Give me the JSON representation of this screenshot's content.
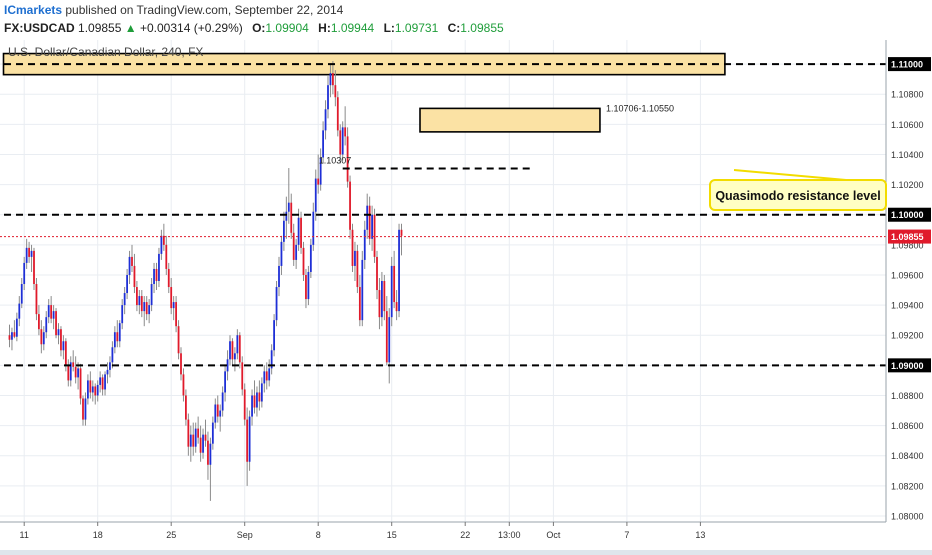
{
  "header": {
    "publisher": "ICmarkets",
    "published_text": "published on TradingView.com, September 22, 2014",
    "symbol": "FX:USDCAD",
    "last": "1.09855",
    "change_arrow": "▲",
    "change": "+0.00314 (+0.29%)",
    "open_label": "O:",
    "open": "1.09904",
    "high_label": "H:",
    "high": "1.09944",
    "low_label": "L:",
    "low": "1.09731",
    "close_label": "C:",
    "close": "1.09855"
  },
  "colors": {
    "background": "#ffffff",
    "bull": "#1e2fd6",
    "bear": "#e01a2b",
    "zone_fill": "#fbe2a4",
    "callout_fill": "#ffffc4",
    "callout_border": "#f2dc00",
    "price_badge": "#e01a2b",
    "grid": "#e9edf2"
  },
  "chart_data": {
    "type": "candlestick",
    "title": "U.S. Dollar/Canadian Dollar, 240, FX",
    "ylim": [
      1.0796,
      1.1116
    ],
    "y_ticks": [
      "1.11000",
      "1.10800",
      "1.10600",
      "1.10400",
      "1.10200",
      "1.10000",
      "1.09800",
      "1.09600",
      "1.09400",
      "1.09200",
      "1.09000",
      "1.08800",
      "1.08600",
      "1.08400",
      "1.08200",
      "1.08000"
    ],
    "y_tick_values": [
      1.11,
      1.108,
      1.106,
      1.104,
      1.102,
      1.1,
      1.098,
      1.096,
      1.094,
      1.092,
      1.09,
      1.088,
      1.086,
      1.084,
      1.082,
      1.08
    ],
    "x_ticks": [
      "11",
      "18",
      "25",
      "Sep",
      "8",
      "15",
      "22",
      "13:00",
      "Oct",
      "7",
      "13"
    ],
    "x_tick_index": [
      6,
      36,
      66,
      96,
      126,
      156,
      186,
      204,
      222,
      252,
      282
    ],
    "last_price": "1.09855",
    "levels": [
      {
        "label": "1.11000",
        "value": 1.11,
        "style": "dashed",
        "badge": true
      },
      {
        "label": "1.10000",
        "value": 1.1,
        "style": "dashed",
        "badge": true
      },
      {
        "label": "1.09000",
        "value": 1.09,
        "style": "dashed",
        "badge": true
      },
      {
        "label": "1.10307",
        "value": 1.10307,
        "style": "dashed",
        "from_index": 136,
        "to_index": 210
      }
    ],
    "zones": [
      {
        "label": "",
        "top": 1.1107,
        "bottom": 1.1093,
        "from_index": 0,
        "to_index": 292
      },
      {
        "label": "1.10706-1.10550",
        "top": 1.10706,
        "bottom": 1.1055,
        "from_index": 170,
        "to_index": 241
      }
    ],
    "annotation": "Quasimodo resistance level",
    "candles": [
      {
        "o": 1.092,
        "h": 1.0927,
        "l": 1.0912,
        "c": 1.0917
      },
      {
        "o": 1.0917,
        "h": 1.0925,
        "l": 1.091,
        "c": 1.0922
      },
      {
        "o": 1.0922,
        "h": 1.093,
        "l": 1.0918,
        "c": 1.0919
      },
      {
        "o": 1.0919,
        "h": 1.0935,
        "l": 1.0916,
        "c": 1.0931
      },
      {
        "o": 1.0931,
        "h": 1.0946,
        "l": 1.0926,
        "c": 1.0941
      },
      {
        "o": 1.0941,
        "h": 1.0958,
        "l": 1.0938,
        "c": 1.0954
      },
      {
        "o": 1.0954,
        "h": 1.0972,
        "l": 1.095,
        "c": 1.0968
      },
      {
        "o": 1.0968,
        "h": 1.0984,
        "l": 1.0964,
        "c": 1.0978
      },
      {
        "o": 1.0978,
        "h": 1.0982,
        "l": 1.0968,
        "c": 1.0972
      },
      {
        "o": 1.0972,
        "h": 1.098,
        "l": 1.0962,
        "c": 1.0976
      },
      {
        "o": 1.0976,
        "h": 1.0978,
        "l": 1.095,
        "c": 1.0954
      },
      {
        "o": 1.0954,
        "h": 1.0958,
        "l": 1.093,
        "c": 1.0934
      },
      {
        "o": 1.0934,
        "h": 1.094,
        "l": 1.092,
        "c": 1.0924
      },
      {
        "o": 1.0924,
        "h": 1.093,
        "l": 1.0908,
        "c": 1.0914
      },
      {
        "o": 1.0914,
        "h": 1.0926,
        "l": 1.091,
        "c": 1.0922
      },
      {
        "o": 1.0922,
        "h": 1.0936,
        "l": 1.0918,
        "c": 1.0932
      },
      {
        "o": 1.0932,
        "h": 1.0944,
        "l": 1.0928,
        "c": 1.094
      },
      {
        "o": 1.094,
        "h": 1.0946,
        "l": 1.0928,
        "c": 1.0931
      },
      {
        "o": 1.0931,
        "h": 1.094,
        "l": 1.0924,
        "c": 1.0936
      },
      {
        "o": 1.0936,
        "h": 1.0938,
        "l": 1.0918,
        "c": 1.092
      },
      {
        "o": 1.092,
        "h": 1.0928,
        "l": 1.0914,
        "c": 1.0924
      },
      {
        "o": 1.0924,
        "h": 1.0926,
        "l": 1.0906,
        "c": 1.091
      },
      {
        "o": 1.091,
        "h": 1.092,
        "l": 1.0904,
        "c": 1.0916
      },
      {
        "o": 1.0916,
        "h": 1.0918,
        "l": 1.0896,
        "c": 1.09
      },
      {
        "o": 1.09,
        "h": 1.0904,
        "l": 1.0886,
        "c": 1.089
      },
      {
        "o": 1.089,
        "h": 1.0906,
        "l": 1.0886,
        "c": 1.0902
      },
      {
        "o": 1.0902,
        "h": 1.091,
        "l": 1.0896,
        "c": 1.0899
      },
      {
        "o": 1.0899,
        "h": 1.0906,
        "l": 1.0888,
        "c": 1.0892
      },
      {
        "o": 1.0892,
        "h": 1.0902,
        "l": 1.0884,
        "c": 1.0898
      },
      {
        "o": 1.0898,
        "h": 1.0901,
        "l": 1.0874,
        "c": 1.0878
      },
      {
        "o": 1.0878,
        "h": 1.088,
        "l": 1.086,
        "c": 1.0864
      },
      {
        "o": 1.0864,
        "h": 1.0882,
        "l": 1.086,
        "c": 1.0878
      },
      {
        "o": 1.0878,
        "h": 1.0894,
        "l": 1.0874,
        "c": 1.089
      },
      {
        "o": 1.089,
        "h": 1.0896,
        "l": 1.0878,
        "c": 1.0882
      },
      {
        "o": 1.0882,
        "h": 1.089,
        "l": 1.0876,
        "c": 1.0886
      },
      {
        "o": 1.0886,
        "h": 1.0888,
        "l": 1.0874,
        "c": 1.088
      },
      {
        "o": 1.088,
        "h": 1.089,
        "l": 1.0876,
        "c": 1.0887
      },
      {
        "o": 1.0887,
        "h": 1.0896,
        "l": 1.0882,
        "c": 1.0892
      },
      {
        "o": 1.0892,
        "h": 1.0894,
        "l": 1.088,
        "c": 1.0884
      },
      {
        "o": 1.0884,
        "h": 1.0896,
        "l": 1.088,
        "c": 1.0894
      },
      {
        "o": 1.0894,
        "h": 1.0902,
        "l": 1.0888,
        "c": 1.0897
      },
      {
        "o": 1.0897,
        "h": 1.0906,
        "l": 1.0892,
        "c": 1.0902
      },
      {
        "o": 1.0902,
        "h": 1.0916,
        "l": 1.0898,
        "c": 1.0912
      },
      {
        "o": 1.0912,
        "h": 1.0926,
        "l": 1.0908,
        "c": 1.0922
      },
      {
        "o": 1.0922,
        "h": 1.093,
        "l": 1.0912,
        "c": 1.0916
      },
      {
        "o": 1.0916,
        "h": 1.093,
        "l": 1.0912,
        "c": 1.0928
      },
      {
        "o": 1.0928,
        "h": 1.0944,
        "l": 1.0924,
        "c": 1.094
      },
      {
        "o": 1.094,
        "h": 1.0952,
        "l": 1.0934,
        "c": 1.0948
      },
      {
        "o": 1.0948,
        "h": 1.0964,
        "l": 1.0944,
        "c": 1.096
      },
      {
        "o": 1.096,
        "h": 1.0976,
        "l": 1.0954,
        "c": 1.0972
      },
      {
        "o": 1.0972,
        "h": 1.098,
        "l": 1.0962,
        "c": 1.0966
      },
      {
        "o": 1.0966,
        "h": 1.0974,
        "l": 1.0948,
        "c": 1.0952
      },
      {
        "o": 1.0952,
        "h": 1.0956,
        "l": 1.0936,
        "c": 1.094
      },
      {
        "o": 1.094,
        "h": 1.095,
        "l": 1.0934,
        "c": 1.0946
      },
      {
        "o": 1.0946,
        "h": 1.095,
        "l": 1.0932,
        "c": 1.0936
      },
      {
        "o": 1.0936,
        "h": 1.0946,
        "l": 1.0926,
        "c": 1.0942
      },
      {
        "o": 1.0942,
        "h": 1.0946,
        "l": 1.093,
        "c": 1.0934
      },
      {
        "o": 1.0934,
        "h": 1.0944,
        "l": 1.0928,
        "c": 1.094
      },
      {
        "o": 1.094,
        "h": 1.0958,
        "l": 1.0936,
        "c": 1.0954
      },
      {
        "o": 1.0954,
        "h": 1.0968,
        "l": 1.0948,
        "c": 1.0964
      },
      {
        "o": 1.0964,
        "h": 1.0968,
        "l": 1.095,
        "c": 1.0956
      },
      {
        "o": 1.0956,
        "h": 1.0978,
        "l": 1.0952,
        "c": 1.0974
      },
      {
        "o": 1.0974,
        "h": 1.099,
        "l": 1.097,
        "c": 1.0986
      },
      {
        "o": 1.0986,
        "h": 1.0994,
        "l": 1.0976,
        "c": 1.098
      },
      {
        "o": 1.098,
        "h": 1.0986,
        "l": 1.096,
        "c": 1.0964
      },
      {
        "o": 1.0964,
        "h": 1.0968,
        "l": 1.0948,
        "c": 1.0952
      },
      {
        "o": 1.0952,
        "h": 1.0958,
        "l": 1.0934,
        "c": 1.0938
      },
      {
        "o": 1.0938,
        "h": 1.0946,
        "l": 1.093,
        "c": 1.0942
      },
      {
        "o": 1.0942,
        "h": 1.0946,
        "l": 1.0922,
        "c": 1.0926
      },
      {
        "o": 1.0926,
        "h": 1.093,
        "l": 1.0904,
        "c": 1.0908
      },
      {
        "o": 1.0908,
        "h": 1.0912,
        "l": 1.089,
        "c": 1.0894
      },
      {
        "o": 1.0894,
        "h": 1.0898,
        "l": 1.0876,
        "c": 1.088
      },
      {
        "o": 1.088,
        "h": 1.0884,
        "l": 1.086,
        "c": 1.0864
      },
      {
        "o": 1.0864,
        "h": 1.0868,
        "l": 1.084,
        "c": 1.0846
      },
      {
        "o": 1.0846,
        "h": 1.086,
        "l": 1.0836,
        "c": 1.0854
      },
      {
        "o": 1.0854,
        "h": 1.0862,
        "l": 1.084,
        "c": 1.0846
      },
      {
        "o": 1.0846,
        "h": 1.0862,
        "l": 1.0842,
        "c": 1.0858
      },
      {
        "o": 1.0858,
        "h": 1.0866,
        "l": 1.0848,
        "c": 1.0852
      },
      {
        "o": 1.0852,
        "h": 1.086,
        "l": 1.0836,
        "c": 1.0842
      },
      {
        "o": 1.0842,
        "h": 1.0858,
        "l": 1.0838,
        "c": 1.0854
      },
      {
        "o": 1.0854,
        "h": 1.0864,
        "l": 1.0846,
        "c": 1.085
      },
      {
        "o": 1.085,
        "h": 1.0856,
        "l": 1.0824,
        "c": 1.0834
      },
      {
        "o": 1.0834,
        "h": 1.0852,
        "l": 1.081,
        "c": 1.0848
      },
      {
        "o": 1.0848,
        "h": 1.0866,
        "l": 1.0844,
        "c": 1.0862
      },
      {
        "o": 1.0862,
        "h": 1.0878,
        "l": 1.0858,
        "c": 1.0874
      },
      {
        "o": 1.0874,
        "h": 1.088,
        "l": 1.0862,
        "c": 1.0866
      },
      {
        "o": 1.0866,
        "h": 1.0874,
        "l": 1.0856,
        "c": 1.087
      },
      {
        "o": 1.087,
        "h": 1.0886,
        "l": 1.0866,
        "c": 1.0882
      },
      {
        "o": 1.0882,
        "h": 1.09,
        "l": 1.0876,
        "c": 1.0896
      },
      {
        "o": 1.0896,
        "h": 1.091,
        "l": 1.089,
        "c": 1.0904
      },
      {
        "o": 1.0904,
        "h": 1.092,
        "l": 1.09,
        "c": 1.0916
      },
      {
        "o": 1.0916,
        "h": 1.0918,
        "l": 1.09,
        "c": 1.0904
      },
      {
        "o": 1.0904,
        "h": 1.0912,
        "l": 1.0896,
        "c": 1.0908
      },
      {
        "o": 1.0908,
        "h": 1.0924,
        "l": 1.0904,
        "c": 1.092
      },
      {
        "o": 1.092,
        "h": 1.0922,
        "l": 1.0898,
        "c": 1.0902
      },
      {
        "o": 1.0902,
        "h": 1.0906,
        "l": 1.088,
        "c": 1.0884
      },
      {
        "o": 1.0884,
        "h": 1.0888,
        "l": 1.086,
        "c": 1.0864
      },
      {
        "o": 1.0864,
        "h": 1.0872,
        "l": 1.082,
        "c": 1.0836
      },
      {
        "o": 1.0836,
        "h": 1.087,
        "l": 1.083,
        "c": 1.0866
      },
      {
        "o": 1.0866,
        "h": 1.0884,
        "l": 1.086,
        "c": 1.088
      },
      {
        "o": 1.088,
        "h": 1.089,
        "l": 1.0868,
        "c": 1.0872
      },
      {
        "o": 1.0872,
        "h": 1.0886,
        "l": 1.0866,
        "c": 1.0882
      },
      {
        "o": 1.0882,
        "h": 1.089,
        "l": 1.087,
        "c": 1.0876
      },
      {
        "o": 1.0876,
        "h": 1.0892,
        "l": 1.0872,
        "c": 1.0888
      },
      {
        "o": 1.0888,
        "h": 1.09,
        "l": 1.0882,
        "c": 1.0896
      },
      {
        "o": 1.0896,
        "h": 1.0902,
        "l": 1.0884,
        "c": 1.089
      },
      {
        "o": 1.089,
        "h": 1.0904,
        "l": 1.0886,
        "c": 1.0898
      },
      {
        "o": 1.0898,
        "h": 1.0914,
        "l": 1.0894,
        "c": 1.091
      },
      {
        "o": 1.091,
        "h": 1.0934,
        "l": 1.0906,
        "c": 1.093
      },
      {
        "o": 1.093,
        "h": 1.0956,
        "l": 1.0926,
        "c": 1.0952
      },
      {
        "o": 1.0952,
        "h": 1.0972,
        "l": 1.0946,
        "c": 1.0966
      },
      {
        "o": 1.0966,
        "h": 1.0986,
        "l": 1.096,
        "c": 1.0982
      },
      {
        "o": 1.0982,
        "h": 1.1002,
        "l": 1.0976,
        "c": 1.0996
      },
      {
        "o": 1.0996,
        "h": 1.1012,
        "l": 1.0984,
        "c": 1.1002
      },
      {
        "o": 1.1002,
        "h": 1.1031,
        "l": 1.0994,
        "c": 1.1008
      },
      {
        "o": 1.1008,
        "h": 1.1014,
        "l": 1.0984,
        "c": 1.0988
      },
      {
        "o": 1.0988,
        "h": 1.0994,
        "l": 1.0966,
        "c": 1.097
      },
      {
        "o": 1.097,
        "h": 1.0984,
        "l": 1.0964,
        "c": 1.098
      },
      {
        "o": 1.098,
        "h": 1.1004,
        "l": 1.0976,
        "c": 1.0998
      },
      {
        "o": 1.0998,
        "h": 1.1002,
        "l": 1.0974,
        "c": 1.0978
      },
      {
        "o": 1.0978,
        "h": 1.0982,
        "l": 1.0956,
        "c": 1.096
      },
      {
        "o": 1.096,
        "h": 1.0964,
        "l": 1.0938,
        "c": 1.0944
      },
      {
        "o": 1.0944,
        "h": 1.0966,
        "l": 1.094,
        "c": 1.0962
      },
      {
        "o": 1.0962,
        "h": 1.0984,
        "l": 1.0958,
        "c": 1.098
      },
      {
        "o": 1.098,
        "h": 1.1008,
        "l": 1.0976,
        "c": 1.1002
      },
      {
        "o": 1.1002,
        "h": 1.103,
        "l": 1.0996,
        "c": 1.1024
      },
      {
        "o": 1.1024,
        "h": 1.104,
        "l": 1.1014,
        "c": 1.102
      },
      {
        "o": 1.102,
        "h": 1.1044,
        "l": 1.1016,
        "c": 1.1038
      },
      {
        "o": 1.1038,
        "h": 1.1062,
        "l": 1.1034,
        "c": 1.1056
      },
      {
        "o": 1.1056,
        "h": 1.1076,
        "l": 1.105,
        "c": 1.107
      },
      {
        "o": 1.107,
        "h": 1.1092,
        "l": 1.1064,
        "c": 1.1086
      },
      {
        "o": 1.1086,
        "h": 1.11,
        "l": 1.1078,
        "c": 1.1094
      },
      {
        "o": 1.1094,
        "h": 1.1102,
        "l": 1.108,
        "c": 1.1086
      },
      {
        "o": 1.1086,
        "h": 1.1096,
        "l": 1.1072,
        "c": 1.1078
      },
      {
        "o": 1.1078,
        "h": 1.1082,
        "l": 1.1052,
        "c": 1.1056
      },
      {
        "o": 1.1056,
        "h": 1.106,
        "l": 1.1034,
        "c": 1.104
      },
      {
        "o": 1.104,
        "h": 1.1062,
        "l": 1.1036,
        "c": 1.1058
      },
      {
        "o": 1.1058,
        "h": 1.1072,
        "l": 1.1046,
        "c": 1.1052
      },
      {
        "o": 1.1052,
        "h": 1.1058,
        "l": 1.1018,
        "c": 1.1022
      },
      {
        "o": 1.1022,
        "h": 1.1026,
        "l": 1.0984,
        "c": 1.099
      },
      {
        "o": 1.099,
        "h": 1.0994,
        "l": 1.0962,
        "c": 1.0966
      },
      {
        "o": 1.0966,
        "h": 1.0982,
        "l": 1.0956,
        "c": 1.0976
      },
      {
        "o": 1.0976,
        "h": 1.098,
        "l": 1.0948,
        "c": 1.0952
      },
      {
        "o": 1.0952,
        "h": 1.096,
        "l": 1.0926,
        "c": 1.093
      },
      {
        "o": 1.093,
        "h": 1.0976,
        "l": 1.0926,
        "c": 1.097
      },
      {
        "o": 1.097,
        "h": 1.0996,
        "l": 1.0964,
        "c": 1.099
      },
      {
        "o": 1.099,
        "h": 1.1014,
        "l": 1.0984,
        "c": 1.1006
      },
      {
        "o": 1.1006,
        "h": 1.1012,
        "l": 1.098,
        "c": 1.0984
      },
      {
        "o": 1.0984,
        "h": 1.1006,
        "l": 1.0976,
        "c": 1.1
      },
      {
        "o": 1.1,
        "h": 1.1004,
        "l": 1.0968,
        "c": 1.0972
      },
      {
        "o": 1.0972,
        "h": 1.0976,
        "l": 1.0944,
        "c": 1.095
      },
      {
        "o": 1.095,
        "h": 1.0958,
        "l": 1.0924,
        "c": 1.0932
      },
      {
        "o": 1.0932,
        "h": 1.0962,
        "l": 1.0926,
        "c": 1.0956
      },
      {
        "o": 1.0956,
        "h": 1.096,
        "l": 1.093,
        "c": 1.0936
      },
      {
        "o": 1.0936,
        "h": 1.0946,
        "l": 1.09,
        "c": 1.0902
      },
      {
        "o": 1.0902,
        "h": 1.0938,
        "l": 1.0888,
        "c": 1.0932
      },
      {
        "o": 1.0932,
        "h": 1.0972,
        "l": 1.0926,
        "c": 1.0966
      },
      {
        "o": 1.0966,
        "h": 1.0976,
        "l": 1.0938,
        "c": 1.0942
      },
      {
        "o": 1.0942,
        "h": 1.095,
        "l": 1.093,
        "c": 1.0936
      },
      {
        "o": 1.0936,
        "h": 1.0994,
        "l": 1.0932,
        "c": 1.099
      },
      {
        "o": 1.099,
        "h": 1.0994,
        "l": 1.0973,
        "c": 1.0986
      }
    ]
  }
}
